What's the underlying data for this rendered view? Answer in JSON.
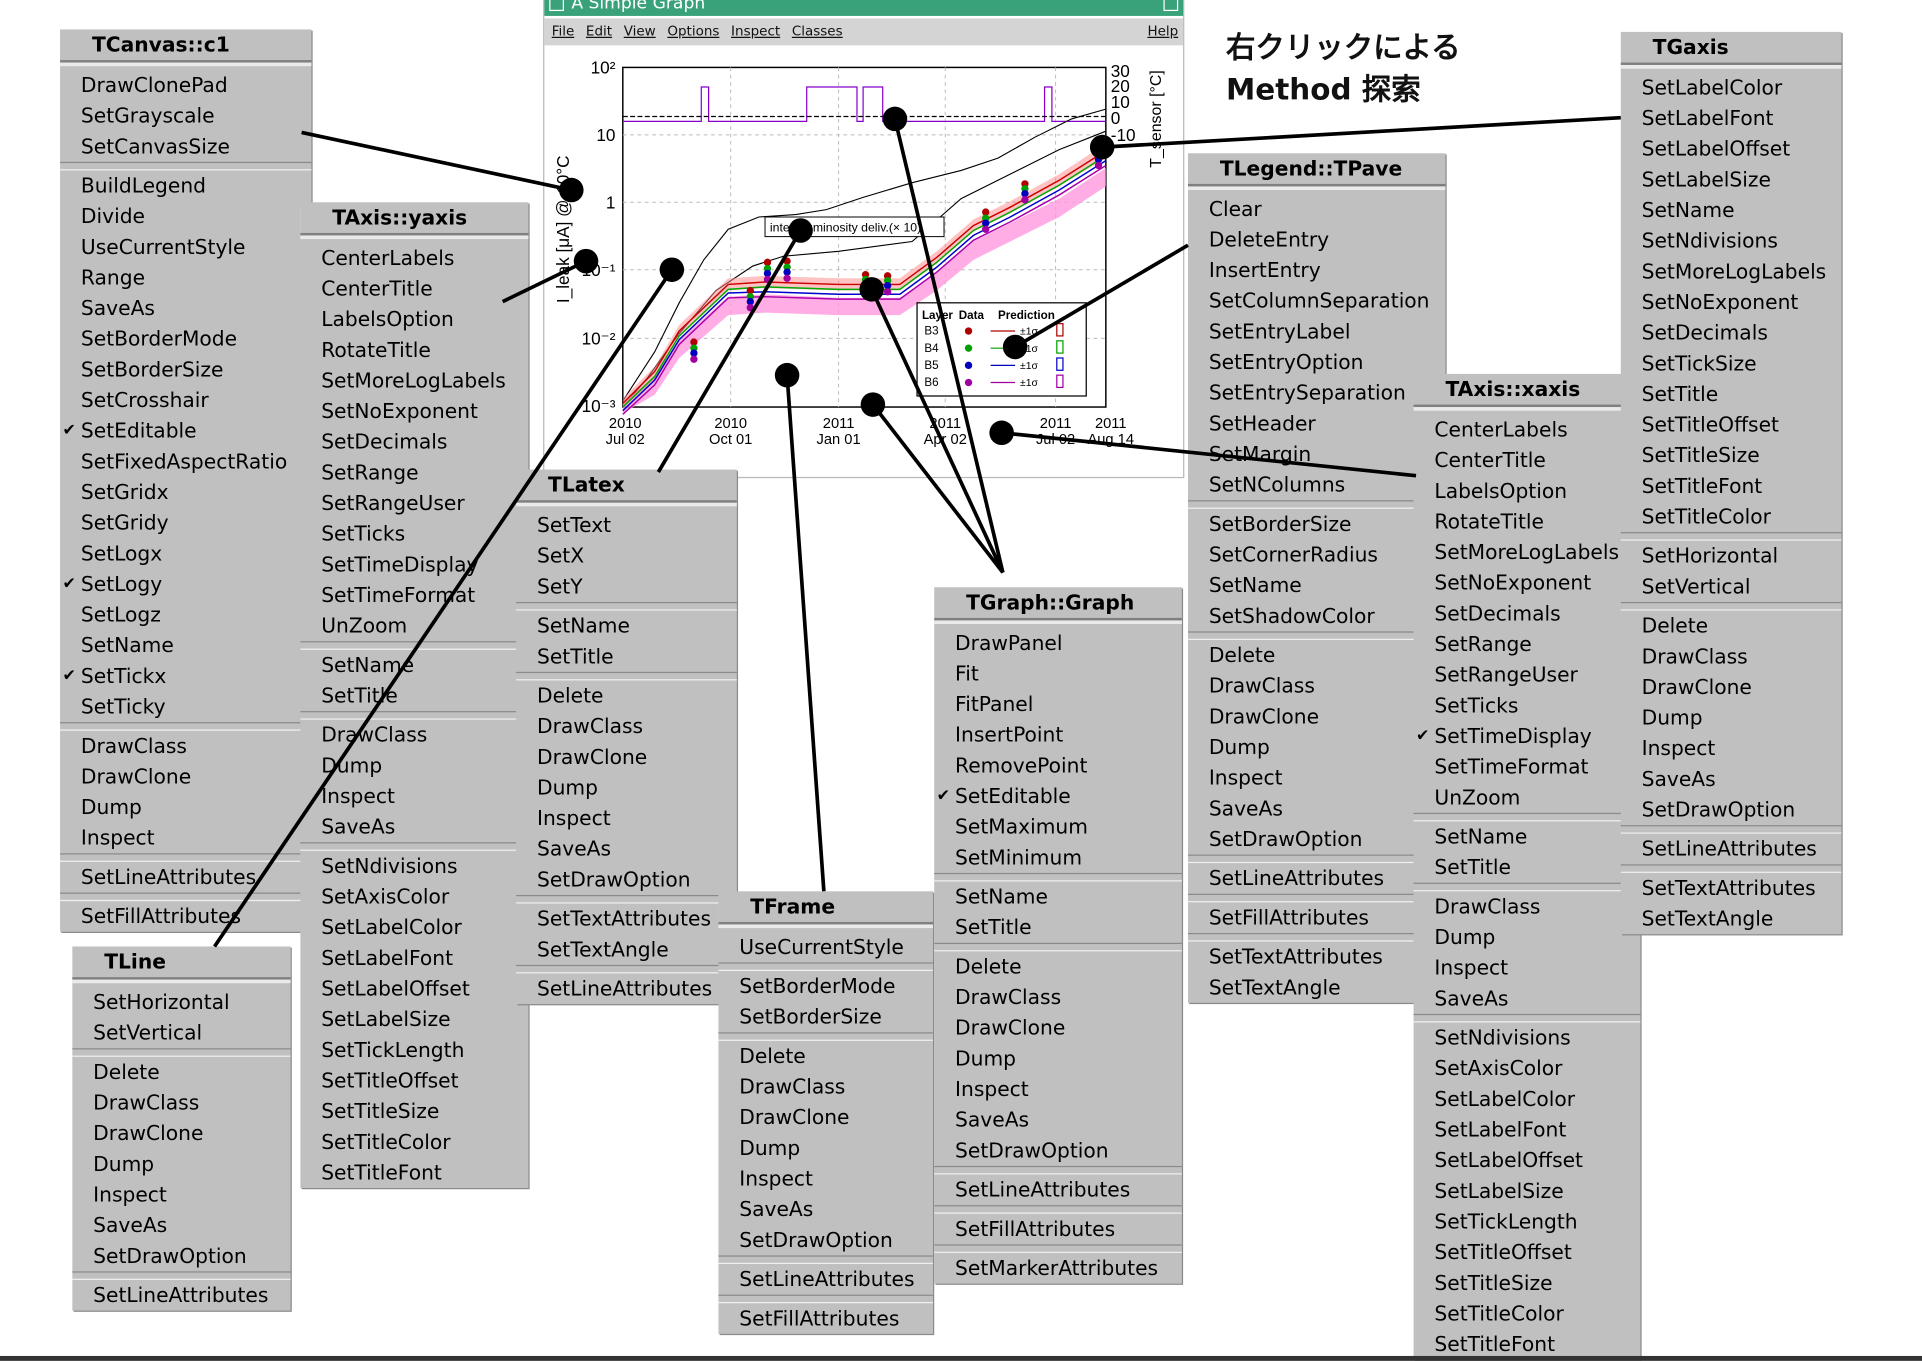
{
  "heading": {
    "line1": "右クリックによる",
    "line2": "Method 探索"
  },
  "graph": {
    "window_title": "A Simple Graph",
    "menubar": [
      "File",
      "Edit",
      "View",
      "Options",
      "Inspect",
      "Classes"
    ],
    "help": "Help",
    "y_ticks": [
      "10²",
      "10",
      "1",
      "10⁻¹",
      "10⁻²",
      "10⁻³"
    ],
    "y_label": "I_leak [μA] @-10°C",
    "right_ticks": [
      "30",
      "20",
      "10",
      "0",
      "-10"
    ],
    "right_label": "T_sensor [°C]",
    "x_ticks": [
      {
        "line1": "2010",
        "line2": "Jul 02"
      },
      {
        "line1": "2010",
        "line2": "Oct 01"
      },
      {
        "line1": "2011",
        "line2": "Jan 01"
      },
      {
        "line1": "2011",
        "line2": "Apr 02"
      },
      {
        "line1": "2011",
        "line2": "Jul 02"
      },
      {
        "line1": "2011",
        "line2": "Aug 14"
      }
    ],
    "latex_text": "integ. luminosity deliv.(× 10)",
    "legend": {
      "headers": [
        "Layer",
        "Data",
        "Prediction"
      ],
      "rows": [
        {
          "name": "B3",
          "color": "#b00000",
          "band": "±1σ"
        },
        {
          "name": "B4",
          "color": "#00a000",
          "band": "±1σ"
        },
        {
          "name": "B5",
          "color": "#0000c0",
          "band": "±1σ"
        },
        {
          "name": "B6",
          "color": "#a000a0",
          "band": "±1σ"
        }
      ]
    }
  },
  "menus": [
    {
      "id": "tcanvas",
      "title": "TCanvas::c1",
      "groups": [
        [
          {
            "label": "DrawClonePad"
          },
          {
            "label": "SetGrayscale"
          },
          {
            "label": "SetCanvasSize"
          }
        ],
        [
          {
            "label": "BuildLegend"
          },
          {
            "label": "Divide"
          },
          {
            "label": "UseCurrentStyle"
          },
          {
            "label": "Range"
          },
          {
            "label": "SaveAs"
          },
          {
            "label": "SetBorderMode"
          },
          {
            "label": "SetBorderSize"
          },
          {
            "label": "SetCrosshair"
          },
          {
            "label": "SetEditable",
            "checked": true
          },
          {
            "label": "SetFixedAspectRatio"
          },
          {
            "label": "SetGridx"
          },
          {
            "label": "SetGridy"
          },
          {
            "label": "SetLogx"
          },
          {
            "label": "SetLogy",
            "checked": true
          },
          {
            "label": "SetLogz"
          },
          {
            "label": "SetName"
          },
          {
            "label": "SetTickx",
            "checked": true
          },
          {
            "label": "SetTicky"
          }
        ],
        [
          {
            "label": "DrawClass"
          },
          {
            "label": "DrawClone"
          },
          {
            "label": "Dump"
          },
          {
            "label": "Inspect"
          }
        ],
        [
          {
            "label": "SetLineAttributes"
          }
        ],
        [
          {
            "label": "SetFillAttributes"
          }
        ]
      ]
    },
    {
      "id": "taxis-yaxis",
      "title": "TAxis::yaxis",
      "groups": [
        [
          {
            "label": "CenterLabels"
          },
          {
            "label": "CenterTitle"
          },
          {
            "label": "LabelsOption"
          },
          {
            "label": "RotateTitle"
          },
          {
            "label": "SetMoreLogLabels"
          },
          {
            "label": "SetNoExponent"
          },
          {
            "label": "SetDecimals"
          },
          {
            "label": "SetRange"
          },
          {
            "label": "SetRangeUser"
          },
          {
            "label": "SetTicks"
          },
          {
            "label": "SetTimeDisplay"
          },
          {
            "label": "SetTimeFormat"
          },
          {
            "label": "UnZoom"
          }
        ],
        [
          {
            "label": "SetName"
          },
          {
            "label": "SetTitle"
          }
        ],
        [
          {
            "label": "DrawClass"
          },
          {
            "label": "Dump"
          },
          {
            "label": "Inspect"
          },
          {
            "label": "SaveAs"
          }
        ],
        [
          {
            "label": "SetNdivisions"
          },
          {
            "label": "SetAxisColor"
          },
          {
            "label": "SetLabelColor"
          },
          {
            "label": "SetLabelFont"
          },
          {
            "label": "SetLabelOffset"
          },
          {
            "label": "SetLabelSize"
          },
          {
            "label": "SetTickLength"
          },
          {
            "label": "SetTitleOffset"
          },
          {
            "label": "SetTitleSize"
          },
          {
            "label": "SetTitleColor"
          },
          {
            "label": "SetTitleFont"
          }
        ]
      ]
    },
    {
      "id": "tlatex",
      "title": "TLatex",
      "groups": [
        [
          {
            "label": "SetText"
          },
          {
            "label": "SetX"
          },
          {
            "label": "SetY"
          }
        ],
        [
          {
            "label": "SetName"
          },
          {
            "label": "SetTitle"
          }
        ],
        [
          {
            "label": "Delete"
          },
          {
            "label": "DrawClass"
          },
          {
            "label": "DrawClone"
          },
          {
            "label": "Dump"
          },
          {
            "label": "Inspect"
          },
          {
            "label": "SaveAs"
          },
          {
            "label": "SetDrawOption"
          }
        ],
        [
          {
            "label": "SetTextAttributes"
          },
          {
            "label": "SetTextAngle"
          }
        ],
        [
          {
            "label": "SetLineAttributes"
          }
        ]
      ]
    },
    {
      "id": "tline",
      "title": "TLine",
      "groups": [
        [
          {
            "label": "SetHorizontal"
          },
          {
            "label": "SetVertical"
          }
        ],
        [
          {
            "label": "Delete"
          },
          {
            "label": "DrawClass"
          },
          {
            "label": "DrawClone"
          },
          {
            "label": "Dump"
          },
          {
            "label": "Inspect"
          },
          {
            "label": "SaveAs"
          },
          {
            "label": "SetDrawOption"
          }
        ],
        [
          {
            "label": "SetLineAttributes"
          }
        ]
      ]
    },
    {
      "id": "tframe",
      "title": "TFrame",
      "groups": [
        [
          {
            "label": "UseCurrentStyle"
          }
        ],
        [
          {
            "label": "SetBorderMode"
          },
          {
            "label": "SetBorderSize"
          }
        ],
        [
          {
            "label": "Delete"
          },
          {
            "label": "DrawClass"
          },
          {
            "label": "DrawClone"
          },
          {
            "label": "Dump"
          },
          {
            "label": "Inspect"
          },
          {
            "label": "SaveAs"
          },
          {
            "label": "SetDrawOption"
          }
        ],
        [
          {
            "label": "SetLineAttributes"
          }
        ],
        [
          {
            "label": "SetFillAttributes"
          }
        ]
      ]
    },
    {
      "id": "tgraph",
      "title": "TGraph::Graph",
      "groups": [
        [
          {
            "label": "DrawPanel"
          },
          {
            "label": "Fit"
          },
          {
            "label": "FitPanel"
          },
          {
            "label": "InsertPoint"
          },
          {
            "label": "RemovePoint"
          },
          {
            "label": "SetEditable",
            "checked": true
          },
          {
            "label": "SetMaximum"
          },
          {
            "label": "SetMinimum"
          }
        ],
        [
          {
            "label": "SetName"
          },
          {
            "label": "SetTitle"
          }
        ],
        [
          {
            "label": "Delete"
          },
          {
            "label": "DrawClass"
          },
          {
            "label": "DrawClone"
          },
          {
            "label": "Dump"
          },
          {
            "label": "Inspect"
          },
          {
            "label": "SaveAs"
          },
          {
            "label": "SetDrawOption"
          }
        ],
        [
          {
            "label": "SetLineAttributes"
          }
        ],
        [
          {
            "label": "SetFillAttributes"
          }
        ],
        [
          {
            "label": "SetMarkerAttributes"
          }
        ]
      ]
    },
    {
      "id": "tlegend",
      "title": "TLegend::TPave",
      "groups": [
        [
          {
            "label": "Clear"
          },
          {
            "label": "DeleteEntry"
          },
          {
            "label": "InsertEntry"
          },
          {
            "label": "SetColumnSeparation"
          },
          {
            "label": "SetEntryLabel"
          },
          {
            "label": "SetEntryOption"
          },
          {
            "label": "SetEntrySeparation"
          },
          {
            "label": "SetHeader"
          },
          {
            "label": "SetMargin"
          },
          {
            "label": "SetNColumns"
          }
        ],
        [
          {
            "label": "SetBorderSize"
          },
          {
            "label": "SetCornerRadius"
          },
          {
            "label": "SetName"
          },
          {
            "label": "SetShadowColor"
          }
        ],
        [
          {
            "label": "Delete"
          },
          {
            "label": "DrawClass"
          },
          {
            "label": "DrawClone"
          },
          {
            "label": "Dump"
          },
          {
            "label": "Inspect"
          },
          {
            "label": "SaveAs"
          },
          {
            "label": "SetDrawOption"
          }
        ],
        [
          {
            "label": "SetLineAttributes"
          }
        ],
        [
          {
            "label": "SetFillAttributes"
          }
        ],
        [
          {
            "label": "SetTextAttributes"
          },
          {
            "label": "SetTextAngle"
          }
        ]
      ]
    },
    {
      "id": "taxis-xaxis",
      "title": "TAxis::xaxis",
      "groups": [
        [
          {
            "label": "CenterLabels"
          },
          {
            "label": "CenterTitle"
          },
          {
            "label": "LabelsOption"
          },
          {
            "label": "RotateTitle"
          },
          {
            "label": "SetMoreLogLabels"
          },
          {
            "label": "SetNoExponent"
          },
          {
            "label": "SetDecimals"
          },
          {
            "label": "SetRange"
          },
          {
            "label": "SetRangeUser"
          },
          {
            "label": "SetTicks"
          },
          {
            "label": "SetTimeDisplay",
            "checked": true
          },
          {
            "label": "SetTimeFormat"
          },
          {
            "label": "UnZoom"
          }
        ],
        [
          {
            "label": "SetName"
          },
          {
            "label": "SetTitle"
          }
        ],
        [
          {
            "label": "DrawClass"
          },
          {
            "label": "Dump"
          },
          {
            "label": "Inspect"
          },
          {
            "label": "SaveAs"
          }
        ],
        [
          {
            "label": "SetNdivisions"
          },
          {
            "label": "SetAxisColor"
          },
          {
            "label": "SetLabelColor"
          },
          {
            "label": "SetLabelFont"
          },
          {
            "label": "SetLabelOffset"
          },
          {
            "label": "SetLabelSize"
          },
          {
            "label": "SetTickLength"
          },
          {
            "label": "SetTitleOffset"
          },
          {
            "label": "SetTitleSize"
          },
          {
            "label": "SetTitleColor"
          },
          {
            "label": "SetTitleFont"
          }
        ]
      ]
    },
    {
      "id": "tgaxis",
      "title": "TGaxis",
      "groups": [
        [
          {
            "label": "SetLabelColor"
          },
          {
            "label": "SetLabelFont"
          },
          {
            "label": "SetLabelOffset"
          },
          {
            "label": "SetLabelSize"
          },
          {
            "label": "SetName"
          },
          {
            "label": "SetNdivisions"
          },
          {
            "label": "SetMoreLogLabels"
          },
          {
            "label": "SetNoExponent"
          },
          {
            "label": "SetDecimals"
          },
          {
            "label": "SetTickSize"
          },
          {
            "label": "SetTitle"
          },
          {
            "label": "SetTitleOffset"
          },
          {
            "label": "SetTitleSize"
          },
          {
            "label": "SetTitleFont"
          },
          {
            "label": "SetTitleColor"
          }
        ],
        [
          {
            "label": "SetHorizontal"
          },
          {
            "label": "SetVertical"
          }
        ],
        [
          {
            "label": "Delete"
          },
          {
            "label": "DrawClass"
          },
          {
            "label": "DrawClone"
          },
          {
            "label": "Dump"
          },
          {
            "label": "Inspect"
          },
          {
            "label": "SaveAs"
          },
          {
            "label": "SetDrawOption"
          }
        ],
        [
          {
            "label": "SetLineAttributes"
          }
        ],
        [
          {
            "label": "SetTextAttributes"
          },
          {
            "label": "SetTextAngle"
          }
        ]
      ]
    }
  ]
}
